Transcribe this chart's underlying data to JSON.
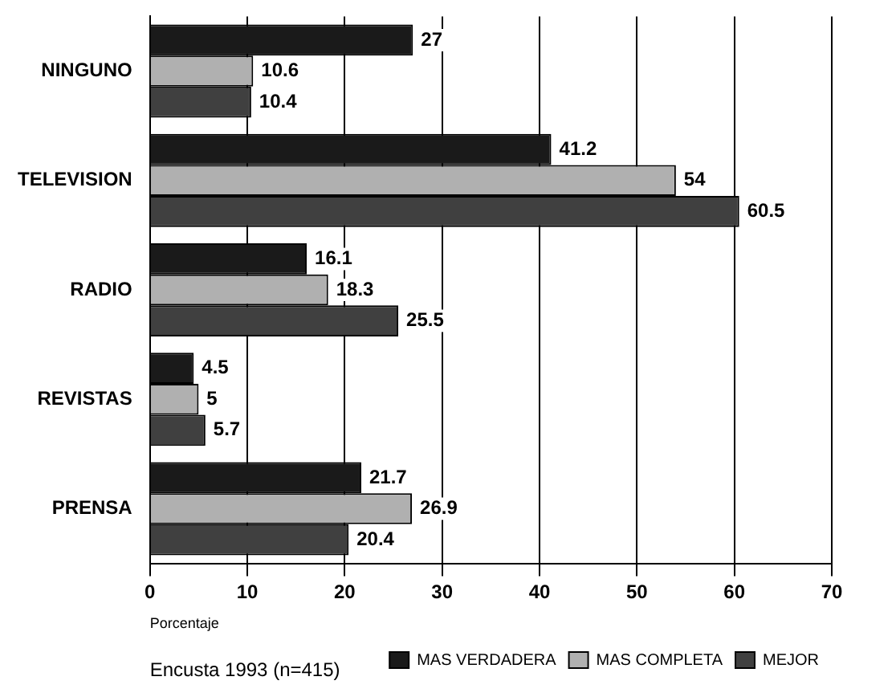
{
  "chart_data": {
    "type": "bar",
    "orientation": "horizontal",
    "categories": [
      "NINGUNO",
      "TELEVISION",
      "RADIO",
      "REVISTAS",
      "PRENSA"
    ],
    "series": [
      {
        "name": "MAS VERDADERA",
        "color": "#1a1a1a",
        "values": [
          27,
          41.2,
          16.1,
          4.5,
          21.7
        ]
      },
      {
        "name": "MAS COMPLETA",
        "color": "#b0b0b0",
        "values": [
          10.6,
          54,
          18.3,
          5,
          26.9
        ]
      },
      {
        "name": "MEJOR",
        "color": "#404040",
        "values": [
          10.4,
          60.5,
          25.5,
          5.7,
          20.4
        ]
      }
    ],
    "xlabel": "Porcentaje",
    "annotations": [
      "Encusta 1993 (n=415)"
    ],
    "xlim": [
      0,
      70
    ],
    "xticks": [
      0,
      10,
      20,
      30,
      40,
      50,
      60,
      70
    ],
    "grid": "x",
    "legend": "bottom right",
    "data_labels": true
  }
}
